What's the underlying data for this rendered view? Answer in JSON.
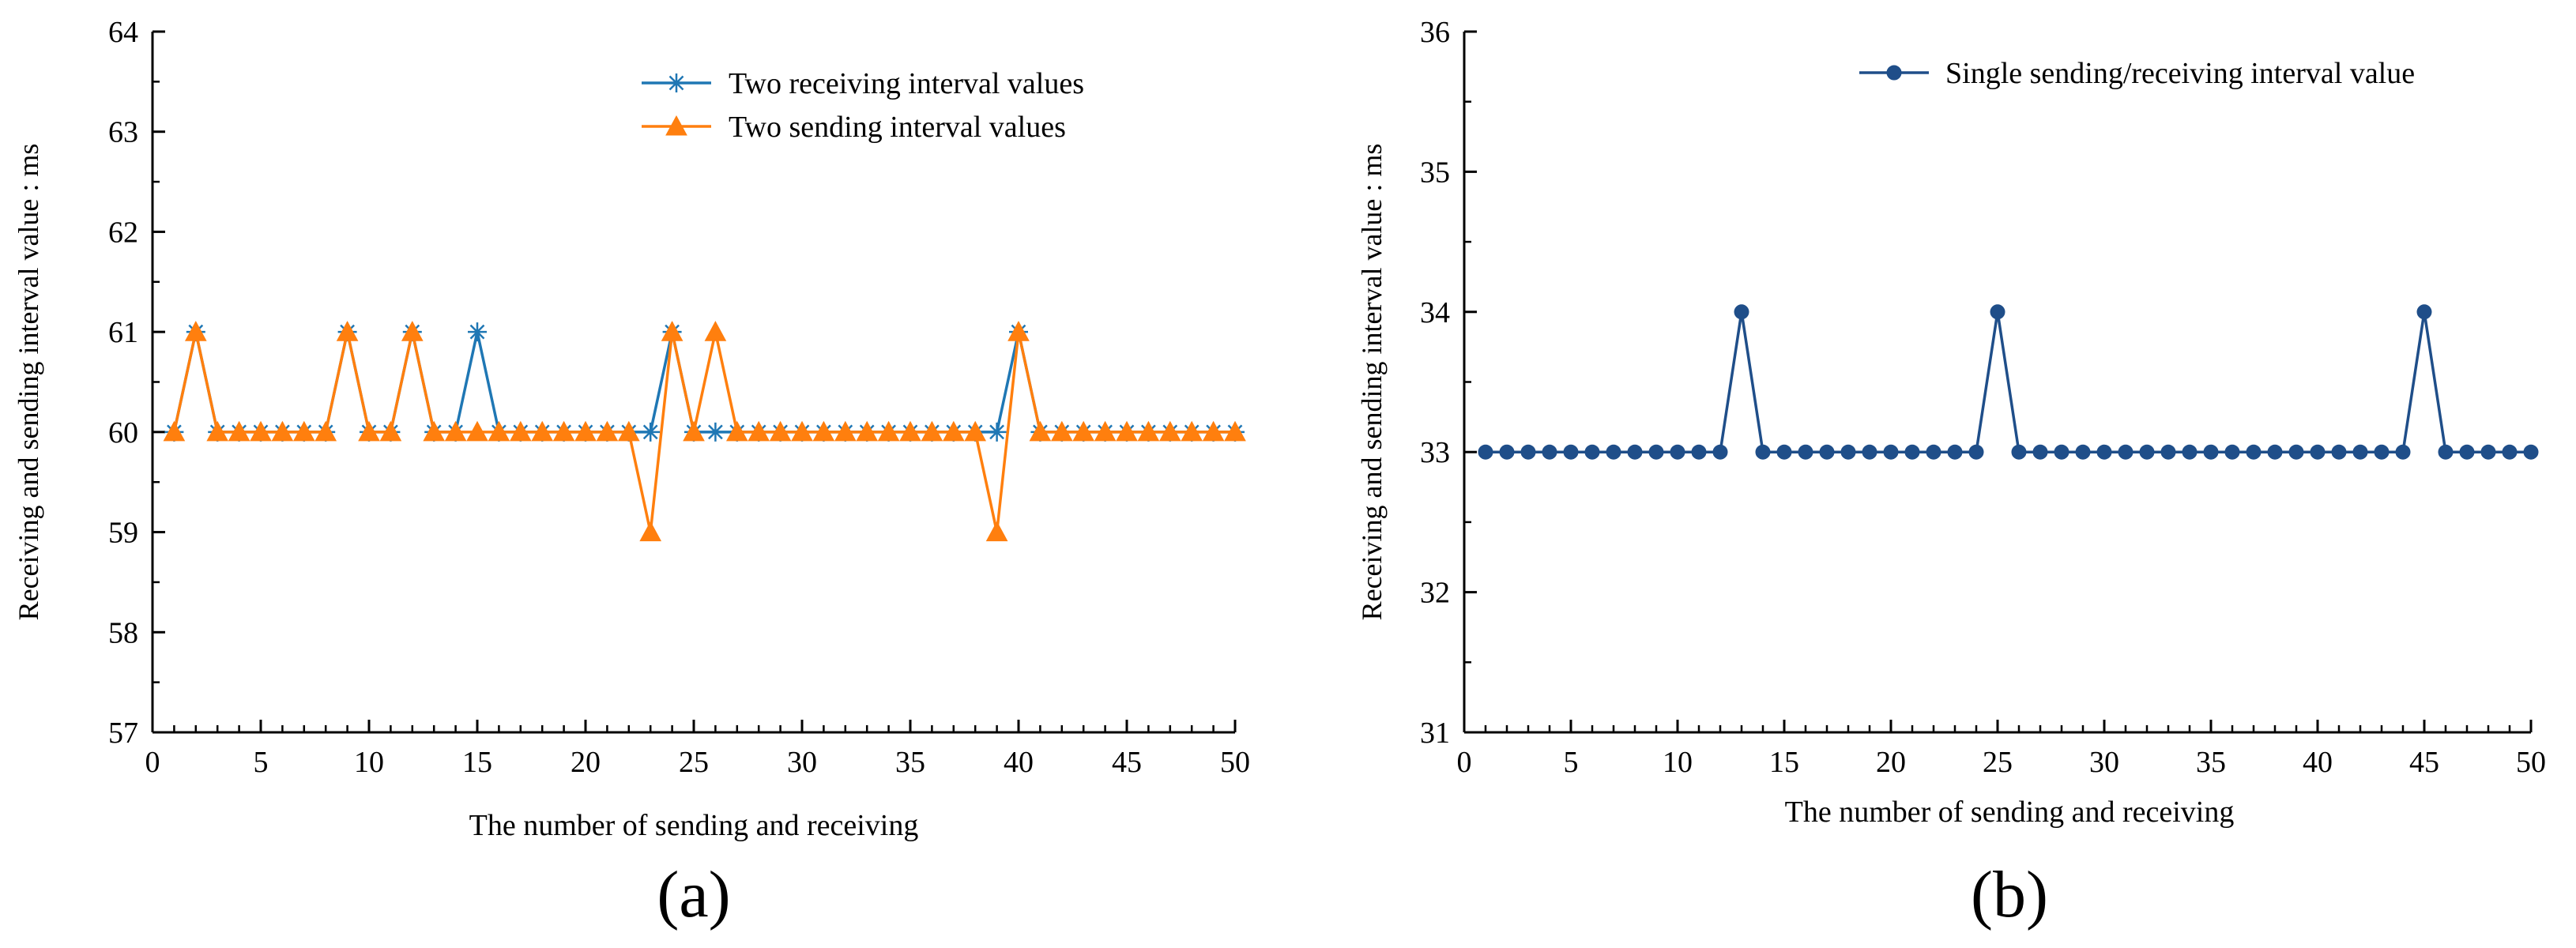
{
  "chart_data": [
    {
      "type": "line",
      "panel_label": "(a)",
      "xlabel": "The number of sending and receiving",
      "ylabel": "Receiving and sending interval value : ms",
      "xlim": [
        0,
        50
      ],
      "ylim": [
        57,
        64
      ],
      "xticks": [
        0,
        5,
        10,
        15,
        20,
        25,
        30,
        35,
        40,
        45,
        50
      ],
      "yticks": [
        57,
        58,
        59,
        60,
        61,
        62,
        63,
        64
      ],
      "legend_position": "top-right",
      "grid": false,
      "x": [
        1,
        2,
        3,
        4,
        5,
        6,
        7,
        8,
        9,
        10,
        11,
        12,
        13,
        14,
        15,
        16,
        17,
        18,
        19,
        20,
        21,
        22,
        23,
        24,
        25,
        26,
        27,
        28,
        29,
        30,
        31,
        32,
        33,
        34,
        35,
        36,
        37,
        38,
        39,
        40,
        41,
        42,
        43,
        44,
        45,
        46,
        47,
        48,
        49,
        50
      ],
      "series": [
        {
          "name": "Two receiving interval values",
          "color": "#1f77b4",
          "marker": "asterisk",
          "values": [
            60,
            61,
            60,
            60,
            60,
            60,
            60,
            60,
            61,
            60,
            60,
            61,
            60,
            60,
            61,
            60,
            60,
            60,
            60,
            60,
            60,
            60,
            60,
            61,
            60,
            60,
            60,
            60,
            60,
            60,
            60,
            60,
            60,
            60,
            60,
            60,
            60,
            60,
            60,
            61,
            60,
            60,
            60,
            60,
            60,
            60,
            60,
            60,
            60,
            60
          ]
        },
        {
          "name": "Two sending interval values",
          "color": "#ff7f0e",
          "marker": "triangle",
          "values": [
            60,
            61,
            60,
            60,
            60,
            60,
            60,
            60,
            61,
            60,
            60,
            61,
            60,
            60,
            60,
            60,
            60,
            60,
            60,
            60,
            60,
            60,
            59,
            61,
            60,
            61,
            60,
            60,
            60,
            60,
            60,
            60,
            60,
            60,
            60,
            60,
            60,
            60,
            59,
            61,
            60,
            60,
            60,
            60,
            60,
            60,
            60,
            60,
            60,
            60
          ]
        }
      ]
    },
    {
      "type": "line",
      "panel_label": "(b)",
      "xlabel": "The number of sending and receiving",
      "ylabel": "Receiving and sending interval value : ms",
      "xlim": [
        0,
        50
      ],
      "ylim": [
        31,
        36
      ],
      "xticks": [
        0,
        5,
        10,
        15,
        20,
        25,
        30,
        35,
        40,
        45,
        50
      ],
      "yticks": [
        31,
        32,
        33,
        34,
        35,
        36
      ],
      "legend_position": "top-right",
      "grid": false,
      "x": [
        1,
        2,
        3,
        4,
        5,
        6,
        7,
        8,
        9,
        10,
        11,
        12,
        13,
        14,
        15,
        16,
        17,
        18,
        19,
        20,
        21,
        22,
        23,
        24,
        25,
        26,
        27,
        28,
        29,
        30,
        31,
        32,
        33,
        34,
        35,
        36,
        37,
        38,
        39,
        40,
        41,
        42,
        43,
        44,
        45,
        46,
        47,
        48,
        49,
        50
      ],
      "series": [
        {
          "name": "Single sending/receiving interval value",
          "color": "#1f4e89",
          "marker": "circle",
          "values": [
            33,
            33,
            33,
            33,
            33,
            33,
            33,
            33,
            33,
            33,
            33,
            33,
            34,
            33,
            33,
            33,
            33,
            33,
            33,
            33,
            33,
            33,
            33,
            33,
            34,
            33,
            33,
            33,
            33,
            33,
            33,
            33,
            33,
            33,
            33,
            33,
            33,
            33,
            33,
            33,
            33,
            33,
            33,
            33,
            34,
            33,
            33,
            33,
            33,
            33
          ]
        }
      ]
    }
  ]
}
